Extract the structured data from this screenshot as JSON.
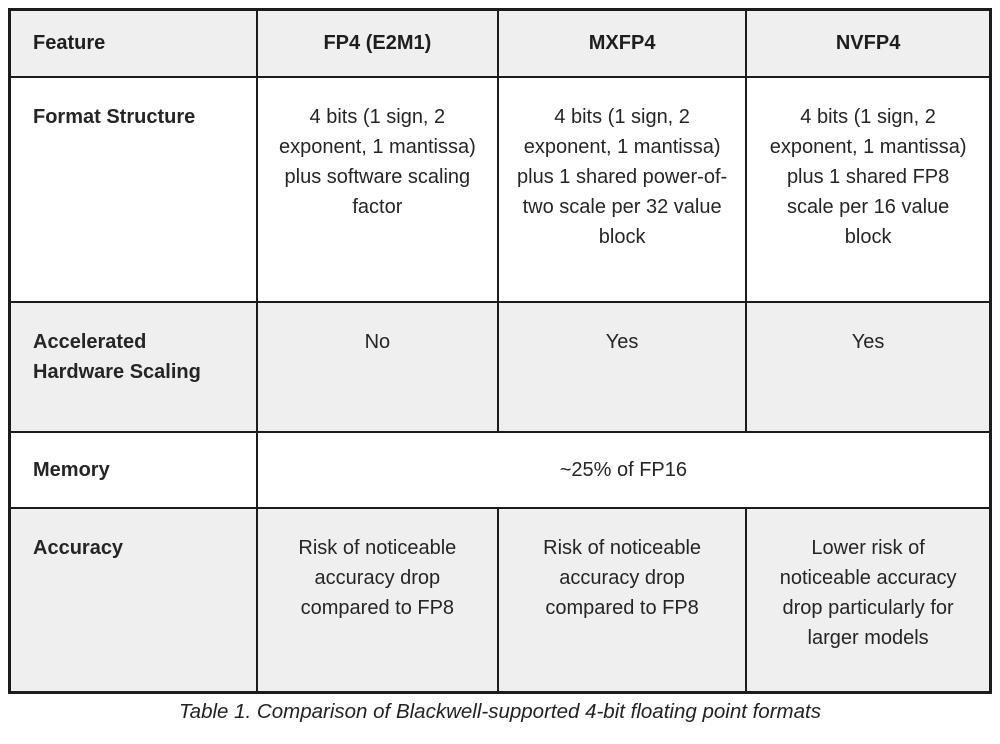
{
  "table": {
    "columns": [
      "Feature",
      "FP4 (E2M1)",
      "MXFP4",
      "NVFP4"
    ],
    "rows": [
      {
        "feature": "Format Structure",
        "cells": [
          "4 bits (1 sign, 2 exponent, 1 mantissa) plus software scaling factor",
          "4 bits (1 sign, 2 exponent, 1 mantissa) plus 1 shared power-of-two scale per 32 value block",
          "4 bits (1 sign, 2 exponent, 1 mantissa) plus 1 shared FP8 scale per 16 value block"
        ]
      },
      {
        "feature": "Accelerated Hardware Scaling",
        "cells": [
          "No",
          "Yes",
          "Yes"
        ]
      },
      {
        "feature": "Memory",
        "cells": [
          "~25% of FP16"
        ],
        "colspan": 3
      },
      {
        "feature": "Accuracy",
        "cells": [
          "Risk of noticeable accuracy drop compared to FP8",
          "Risk of noticeable accuracy drop compared to FP8",
          "Lower risk of noticeable accuracy drop particularly for larger models"
        ]
      }
    ],
    "caption": "Table 1. Comparison of Blackwell-supported 4-bit floating point formats"
  },
  "colors": {
    "header_bg": "#efefef",
    "alt_row_bg": "#efefef",
    "border": "#1c1c1c",
    "text": "#252525"
  }
}
